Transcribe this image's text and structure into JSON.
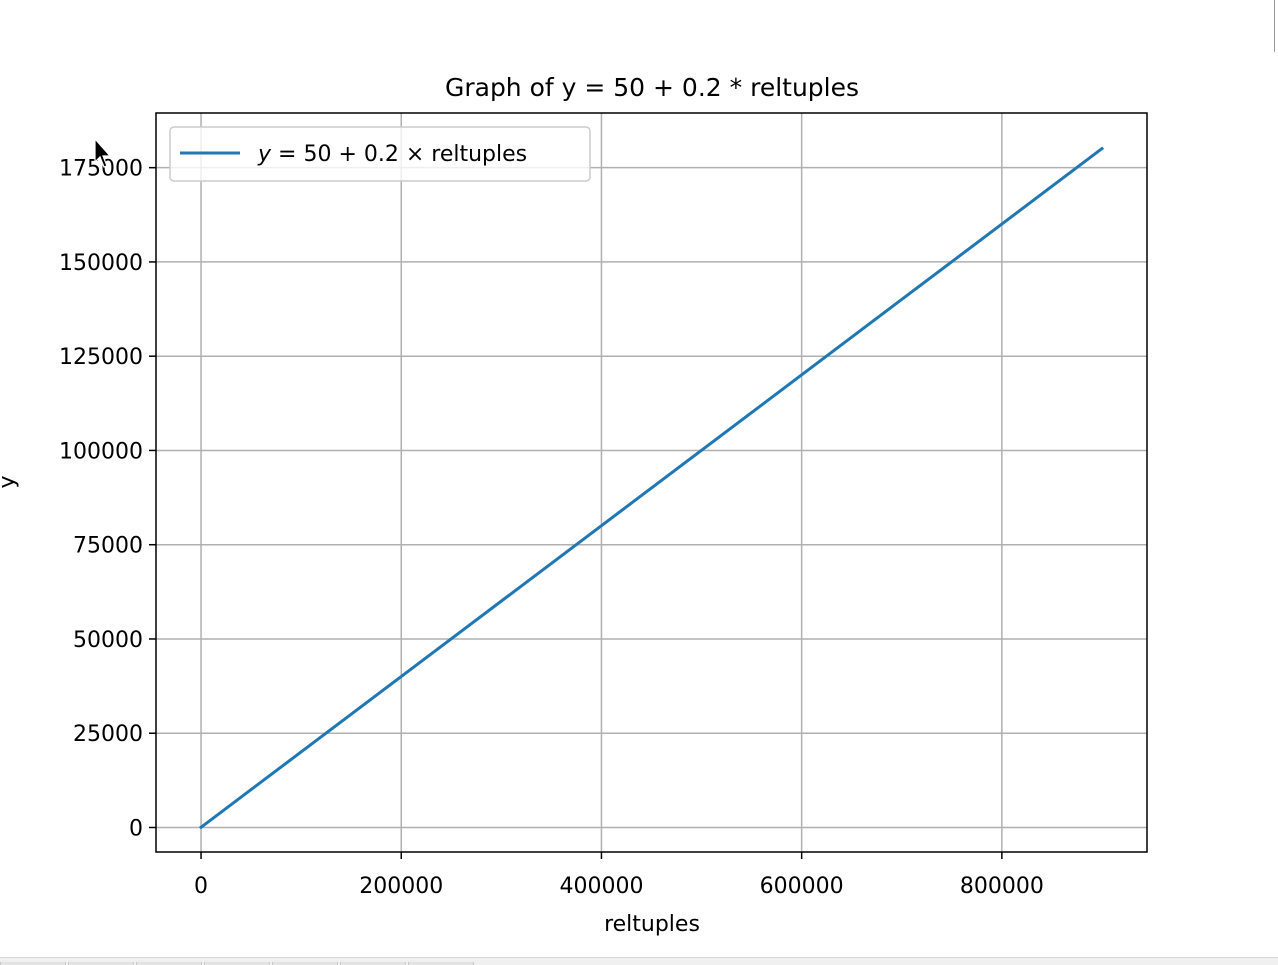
{
  "chart_data": {
    "type": "line",
    "title": "Graph of y = 50 + 0.2 * reltuples",
    "xlabel": "reltuples",
    "ylabel": "y",
    "xlim": [
      -45000,
      945000
    ],
    "ylim": [
      -6500,
      189500
    ],
    "x_ticks": [
      0,
      200000,
      400000,
      600000,
      800000
    ],
    "x_tick_labels": [
      "0",
      "200000",
      "400000",
      "600000",
      "800000"
    ],
    "y_ticks": [
      0,
      25000,
      50000,
      75000,
      100000,
      125000,
      150000,
      175000
    ],
    "y_tick_labels": [
      "0",
      "25000",
      "50000",
      "75000",
      "100000",
      "125000",
      "150000",
      "175000"
    ],
    "grid": true,
    "legend_position": "upper left",
    "series": [
      {
        "name": "y = 50 + 0.2 × reltuples",
        "color": "#1f77b4",
        "x": [
          0,
          900000
        ],
        "y": [
          50,
          180050
        ]
      }
    ]
  },
  "legend": {
    "y_var": "y",
    "equals_50": " = 50 + 0.2 × ",
    "var_name": "reltuples"
  },
  "cursor": "mouse-pointer-icon"
}
